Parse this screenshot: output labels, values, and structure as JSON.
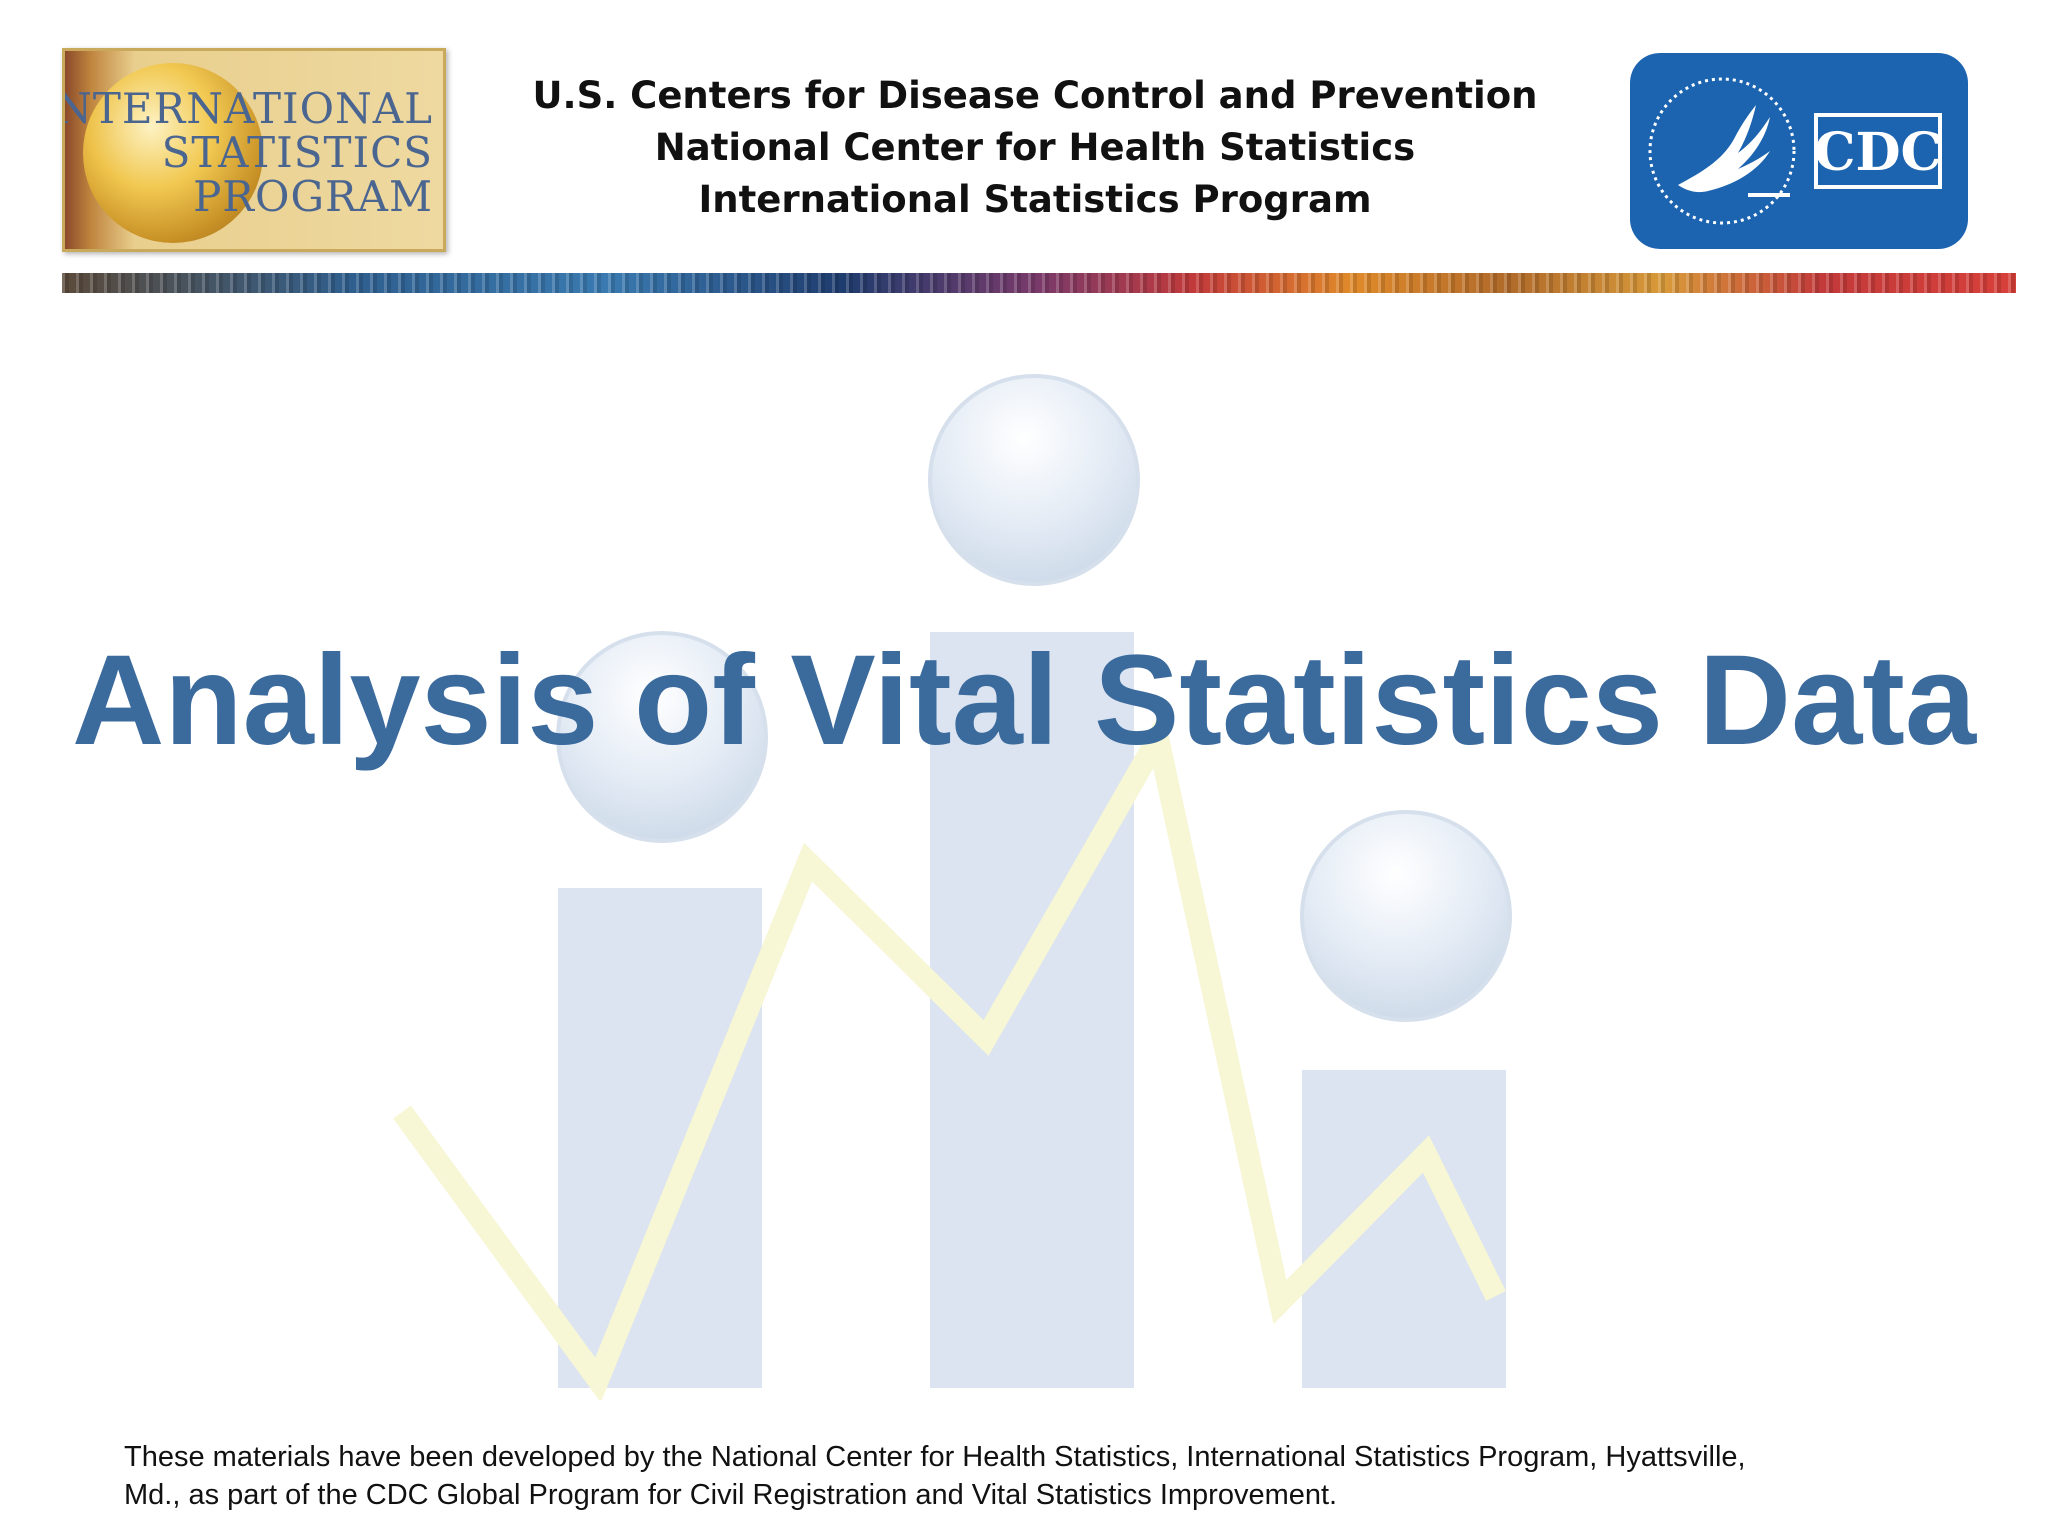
{
  "logo_left": {
    "line1": "INTERNATIONAL",
    "line2": "STATISTICS",
    "line3": "PROGRAM"
  },
  "header": {
    "line1": "U.S. Centers for Disease Control and Prevention",
    "line2": "National Center for Health Statistics",
    "line3": "International Statistics Program"
  },
  "logo_right": {
    "text": "CDC",
    "icon": "hhs-eagle-icon"
  },
  "title": "Analysis of Vital Statistics Data",
  "footer": {
    "line1": "These materials have been developed by the National Center for Health Statistics, International Statistics Program, Hyattsville,",
    "line2": "Md., as part of the CDC Global Program for Civil Registration and Vital Statistics Improvement."
  },
  "colors": {
    "title": "#3b6a9d",
    "cdc_blue": "#1c63b0",
    "watermark_bars": "#dbe4f0",
    "watermark_line": "#f7f6d5"
  }
}
